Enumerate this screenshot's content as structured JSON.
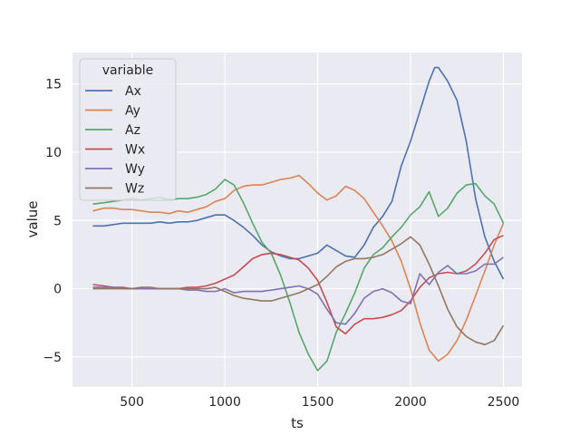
{
  "chart_data": {
    "type": "line",
    "xlabel": "ts",
    "ylabel": "value",
    "xlim": [
      180,
      2600
    ],
    "ylim": [
      -7.2,
      17.3
    ],
    "xticks": [
      500,
      1000,
      1500,
      2000,
      2500
    ],
    "yticks": [
      -5,
      0,
      5,
      10,
      15
    ],
    "ytick_labels": [
      "−5",
      "0",
      "5",
      "10",
      "15"
    ],
    "grid": true,
    "legend": {
      "title": "variable",
      "placement": "top-left"
    },
    "series": [
      {
        "name": "Ax",
        "color": "#4c72b0",
        "points": [
          [
            290,
            4.6
          ],
          [
            350,
            4.6
          ],
          [
            400,
            4.7
          ],
          [
            450,
            4.8
          ],
          [
            500,
            4.8
          ],
          [
            550,
            4.8
          ],
          [
            600,
            4.8
          ],
          [
            650,
            4.9
          ],
          [
            700,
            4.8
          ],
          [
            750,
            4.9
          ],
          [
            800,
            4.9
          ],
          [
            850,
            5.0
          ],
          [
            900,
            5.2
          ],
          [
            950,
            5.4
          ],
          [
            1000,
            5.4
          ],
          [
            1050,
            5.0
          ],
          [
            1100,
            4.5
          ],
          [
            1150,
            3.9
          ],
          [
            1200,
            3.2
          ],
          [
            1250,
            2.7
          ],
          [
            1300,
            2.4
          ],
          [
            1350,
            2.2
          ],
          [
            1400,
            2.2
          ],
          [
            1450,
            2.4
          ],
          [
            1500,
            2.6
          ],
          [
            1550,
            3.2
          ],
          [
            1600,
            2.8
          ],
          [
            1650,
            2.4
          ],
          [
            1700,
            2.3
          ],
          [
            1750,
            3.2
          ],
          [
            1800,
            4.5
          ],
          [
            1850,
            5.3
          ],
          [
            1900,
            6.4
          ],
          [
            1950,
            9.0
          ],
          [
            2000,
            10.8
          ],
          [
            2050,
            13.0
          ],
          [
            2100,
            15.2
          ],
          [
            2130,
            16.2
          ],
          [
            2150,
            16.2
          ],
          [
            2200,
            15.2
          ],
          [
            2250,
            13.8
          ],
          [
            2300,
            10.8
          ],
          [
            2350,
            6.6
          ],
          [
            2400,
            3.8
          ],
          [
            2450,
            2.0
          ],
          [
            2500,
            0.7
          ]
        ]
      },
      {
        "name": "Ay",
        "color": "#dd8452",
        "points": [
          [
            290,
            5.7
          ],
          [
            350,
            5.9
          ],
          [
            400,
            5.9
          ],
          [
            450,
            5.8
          ],
          [
            500,
            5.8
          ],
          [
            550,
            5.7
          ],
          [
            600,
            5.6
          ],
          [
            650,
            5.6
          ],
          [
            700,
            5.5
          ],
          [
            750,
            5.7
          ],
          [
            800,
            5.6
          ],
          [
            850,
            5.8
          ],
          [
            900,
            6.0
          ],
          [
            950,
            6.4
          ],
          [
            1000,
            6.6
          ],
          [
            1050,
            7.2
          ],
          [
            1100,
            7.5
          ],
          [
            1150,
            7.6
          ],
          [
            1200,
            7.6
          ],
          [
            1250,
            7.8
          ],
          [
            1300,
            8.0
          ],
          [
            1350,
            8.1
          ],
          [
            1400,
            8.3
          ],
          [
            1450,
            7.7
          ],
          [
            1500,
            7.0
          ],
          [
            1550,
            6.5
          ],
          [
            1600,
            6.8
          ],
          [
            1650,
            7.5
          ],
          [
            1700,
            7.2
          ],
          [
            1750,
            6.6
          ],
          [
            1800,
            5.6
          ],
          [
            1850,
            4.6
          ],
          [
            1900,
            3.5
          ],
          [
            1950,
            2.0
          ],
          [
            2000,
            0.0
          ],
          [
            2050,
            -2.5
          ],
          [
            2100,
            -4.5
          ],
          [
            2150,
            -5.3
          ],
          [
            2200,
            -4.8
          ],
          [
            2250,
            -3.8
          ],
          [
            2300,
            -2.3
          ],
          [
            2350,
            -0.5
          ],
          [
            2400,
            1.3
          ],
          [
            2450,
            3.2
          ],
          [
            2500,
            4.8
          ]
        ]
      },
      {
        "name": "Az",
        "color": "#55a868",
        "points": [
          [
            290,
            6.2
          ],
          [
            350,
            6.3
          ],
          [
            400,
            6.4
          ],
          [
            450,
            6.5
          ],
          [
            500,
            6.6
          ],
          [
            550,
            6.5
          ],
          [
            600,
            6.6
          ],
          [
            650,
            6.7
          ],
          [
            700,
            6.5
          ],
          [
            750,
            6.6
          ],
          [
            800,
            6.6
          ],
          [
            850,
            6.7
          ],
          [
            900,
            6.9
          ],
          [
            950,
            7.3
          ],
          [
            1000,
            8.0
          ],
          [
            1050,
            7.6
          ],
          [
            1100,
            6.3
          ],
          [
            1150,
            4.8
          ],
          [
            1200,
            3.4
          ],
          [
            1250,
            2.6
          ],
          [
            1300,
            1.0
          ],
          [
            1350,
            -1.0
          ],
          [
            1400,
            -3.2
          ],
          [
            1450,
            -4.8
          ],
          [
            1500,
            -6.0
          ],
          [
            1550,
            -5.3
          ],
          [
            1600,
            -3.2
          ],
          [
            1650,
            -1.8
          ],
          [
            1700,
            -0.3
          ],
          [
            1750,
            1.5
          ],
          [
            1800,
            2.5
          ],
          [
            1850,
            3.0
          ],
          [
            1900,
            3.8
          ],
          [
            1950,
            4.5
          ],
          [
            2000,
            5.4
          ],
          [
            2050,
            6.0
          ],
          [
            2100,
            7.1
          ],
          [
            2150,
            5.3
          ],
          [
            2200,
            5.9
          ],
          [
            2250,
            7.0
          ],
          [
            2300,
            7.6
          ],
          [
            2350,
            7.7
          ],
          [
            2400,
            6.8
          ],
          [
            2450,
            6.2
          ],
          [
            2500,
            4.8
          ]
        ]
      },
      {
        "name": "Wx",
        "color": "#c44e52",
        "points": [
          [
            290,
            0.3
          ],
          [
            350,
            0.2
          ],
          [
            400,
            0.1
          ],
          [
            450,
            0.1
          ],
          [
            500,
            0.0
          ],
          [
            550,
            0.0
          ],
          [
            600,
            0.0
          ],
          [
            650,
            0.0
          ],
          [
            700,
            0.0
          ],
          [
            750,
            0.0
          ],
          [
            800,
            0.1
          ],
          [
            850,
            0.1
          ],
          [
            900,
            0.2
          ],
          [
            950,
            0.4
          ],
          [
            1000,
            0.7
          ],
          [
            1050,
            1.0
          ],
          [
            1100,
            1.6
          ],
          [
            1150,
            2.2
          ],
          [
            1200,
            2.5
          ],
          [
            1250,
            2.6
          ],
          [
            1300,
            2.5
          ],
          [
            1350,
            2.3
          ],
          [
            1400,
            2.1
          ],
          [
            1450,
            1.5
          ],
          [
            1500,
            0.6
          ],
          [
            1550,
            -1.0
          ],
          [
            1600,
            -2.8
          ],
          [
            1650,
            -3.3
          ],
          [
            1700,
            -2.6
          ],
          [
            1750,
            -2.2
          ],
          [
            1800,
            -2.2
          ],
          [
            1850,
            -2.1
          ],
          [
            1900,
            -1.9
          ],
          [
            1950,
            -1.6
          ],
          [
            2000,
            -0.9
          ],
          [
            2050,
            0.1
          ],
          [
            2100,
            0.8
          ],
          [
            2150,
            1.1
          ],
          [
            2200,
            1.2
          ],
          [
            2250,
            1.1
          ],
          [
            2300,
            1.3
          ],
          [
            2350,
            1.8
          ],
          [
            2400,
            2.6
          ],
          [
            2450,
            3.6
          ],
          [
            2500,
            3.9
          ]
        ]
      },
      {
        "name": "Wy",
        "color": "#8172b3",
        "points": [
          [
            290,
            0.1
          ],
          [
            350,
            0.1
          ],
          [
            400,
            0.1
          ],
          [
            450,
            0.0
          ],
          [
            500,
            0.0
          ],
          [
            550,
            0.0
          ],
          [
            600,
            0.0
          ],
          [
            650,
            0.0
          ],
          [
            700,
            0.0
          ],
          [
            750,
            0.0
          ],
          [
            800,
            -0.1
          ],
          [
            850,
            -0.1
          ],
          [
            900,
            -0.2
          ],
          [
            950,
            -0.2
          ],
          [
            1000,
            0.0
          ],
          [
            1050,
            -0.3
          ],
          [
            1100,
            -0.2
          ],
          [
            1150,
            -0.2
          ],
          [
            1200,
            -0.2
          ],
          [
            1250,
            -0.1
          ],
          [
            1300,
            0.0
          ],
          [
            1350,
            0.1
          ],
          [
            1400,
            0.2
          ],
          [
            1450,
            0.0
          ],
          [
            1500,
            -0.4
          ],
          [
            1550,
            -1.5
          ],
          [
            1600,
            -2.5
          ],
          [
            1650,
            -2.6
          ],
          [
            1700,
            -1.8
          ],
          [
            1750,
            -0.7
          ],
          [
            1800,
            -0.2
          ],
          [
            1850,
            0.0
          ],
          [
            1900,
            -0.3
          ],
          [
            1950,
            -0.9
          ],
          [
            2000,
            -1.1
          ],
          [
            2050,
            1.1
          ],
          [
            2100,
            0.3
          ],
          [
            2150,
            1.2
          ],
          [
            2200,
            1.7
          ],
          [
            2250,
            1.1
          ],
          [
            2300,
            1.1
          ],
          [
            2350,
            1.3
          ],
          [
            2400,
            1.8
          ],
          [
            2450,
            1.8
          ],
          [
            2500,
            2.3
          ]
        ]
      },
      {
        "name": "Wz",
        "color": "#937860",
        "points": [
          [
            290,
            0.0
          ],
          [
            350,
            0.0
          ],
          [
            400,
            0.0
          ],
          [
            450,
            0.0
          ],
          [
            500,
            0.0
          ],
          [
            550,
            0.1
          ],
          [
            600,
            0.1
          ],
          [
            650,
            0.0
          ],
          [
            700,
            0.0
          ],
          [
            750,
            0.0
          ],
          [
            800,
            0.0
          ],
          [
            850,
            0.0
          ],
          [
            900,
            0.0
          ],
          [
            950,
            0.1
          ],
          [
            1000,
            -0.2
          ],
          [
            1050,
            -0.5
          ],
          [
            1100,
            -0.7
          ],
          [
            1150,
            -0.8
          ],
          [
            1200,
            -0.9
          ],
          [
            1250,
            -0.9
          ],
          [
            1300,
            -0.7
          ],
          [
            1350,
            -0.5
          ],
          [
            1400,
            -0.3
          ],
          [
            1450,
            0.0
          ],
          [
            1500,
            0.3
          ],
          [
            1550,
            0.9
          ],
          [
            1600,
            1.6
          ],
          [
            1650,
            2.0
          ],
          [
            1700,
            2.2
          ],
          [
            1750,
            2.2
          ],
          [
            1800,
            2.3
          ],
          [
            1850,
            2.5
          ],
          [
            1900,
            2.9
          ],
          [
            1950,
            3.3
          ],
          [
            2000,
            3.8
          ],
          [
            2050,
            3.2
          ],
          [
            2100,
            1.8
          ],
          [
            2150,
            0.2
          ],
          [
            2200,
            -1.5
          ],
          [
            2250,
            -2.8
          ],
          [
            2300,
            -3.5
          ],
          [
            2350,
            -3.9
          ],
          [
            2400,
            -4.1
          ],
          [
            2450,
            -3.8
          ],
          [
            2500,
            -2.7
          ]
        ]
      }
    ]
  }
}
